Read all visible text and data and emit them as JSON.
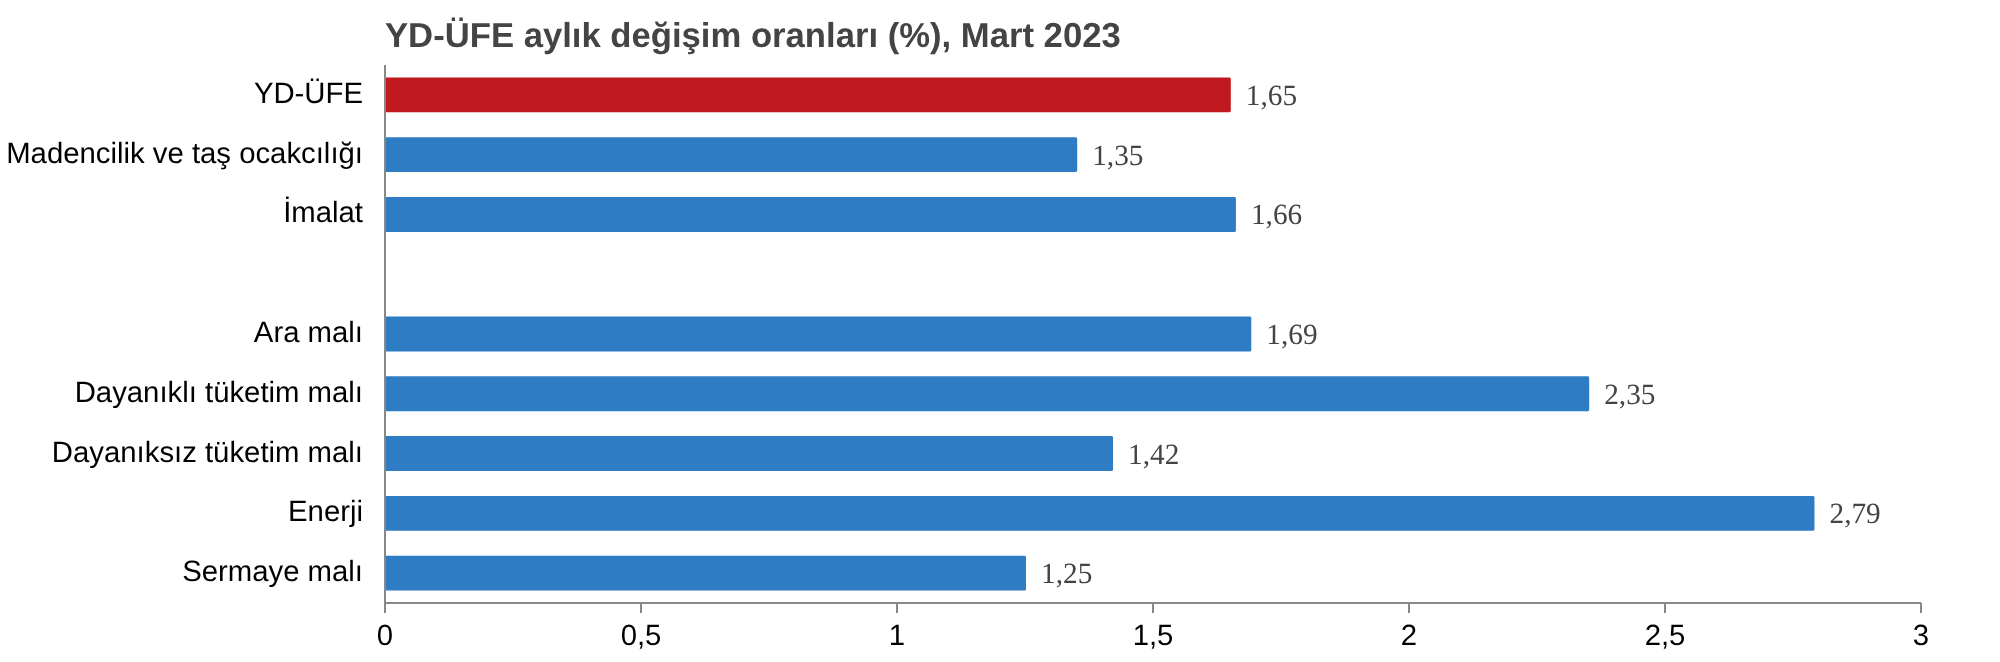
{
  "chart_data": {
    "type": "bar",
    "orientation": "horizontal",
    "title": "YD-ÜFE aylık değişim oranları (%), Mart 2023",
    "categories": [
      "YD-ÜFE",
      "Madencilik ve taş ocakcılığı",
      "İmalat",
      null,
      "Ara malı",
      "Dayanıklı tüketim malı",
      "Dayanıksız tüketim malı",
      "Enerji",
      "Sermaye malı"
    ],
    "values": [
      1.65,
      1.35,
      1.66,
      null,
      1.69,
      2.35,
      1.42,
      2.79,
      1.25
    ],
    "value_labels": [
      "1,65",
      "1,35",
      "1,66",
      null,
      "1,69",
      "2,35",
      "1,42",
      "2,79",
      "1,25"
    ],
    "colors": [
      "#c0191f",
      "#2e7dc4",
      "#2e7dc4",
      null,
      "#2e7dc4",
      "#2e7dc4",
      "#2e7dc4",
      "#2e7dc4",
      "#2e7dc4"
    ],
    "xlim": [
      0,
      3
    ],
    "xticks": [
      0,
      {
        "value": 0.5,
        "label": "0,5"
      },
      1,
      {
        "value": 1.5,
        "label": "1,5"
      },
      2,
      {
        "value": 2.5,
        "label": "2,5"
      },
      3
    ],
    "grid": false
  }
}
